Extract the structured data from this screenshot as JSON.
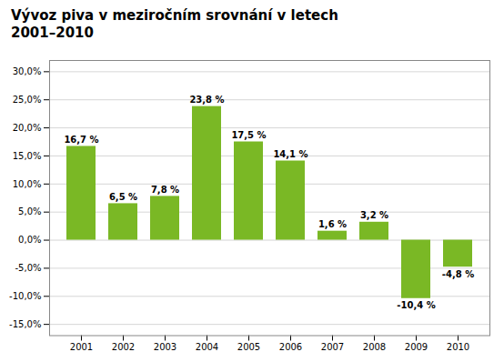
{
  "chart_data": {
    "type": "bar",
    "title": "Vývoz piva v meziročním srovnání v letech\n2001–2010",
    "categories": [
      "2001",
      "2002",
      "2003",
      "2004",
      "2005",
      "2006",
      "2007",
      "2008",
      "2009",
      "2010"
    ],
    "values": [
      16.7,
      6.5,
      7.8,
      23.8,
      17.5,
      14.1,
      1.6,
      3.2,
      -10.4,
      -4.8
    ],
    "value_labels": [
      "16,7 %",
      "6,5 %",
      "7,8 %",
      "23,8 %",
      "17,5 %",
      "14,1 %",
      "1,6 %",
      "3,2 %",
      "-10,4 %",
      "-4,8 %"
    ],
    "data_labels": true,
    "color": "#7ab825",
    "ylim": [
      -17,
      32
    ],
    "yticks": [
      {
        "value": -15,
        "label": "-15,0%"
      },
      {
        "value": -10,
        "label": "-10,0%"
      },
      {
        "value": -5,
        "label": "-5,0%"
      },
      {
        "value": 0,
        "label": "0,0%"
      },
      {
        "value": 5,
        "label": "5,0%"
      },
      {
        "value": 10,
        "label": "10,0%"
      },
      {
        "value": 15,
        "label": "15,0%"
      },
      {
        "value": 20,
        "label": "20,0%"
      },
      {
        "value": 25,
        "label": "25,0%"
      },
      {
        "value": 30,
        "label": "30,0%"
      }
    ],
    "grid": true
  }
}
